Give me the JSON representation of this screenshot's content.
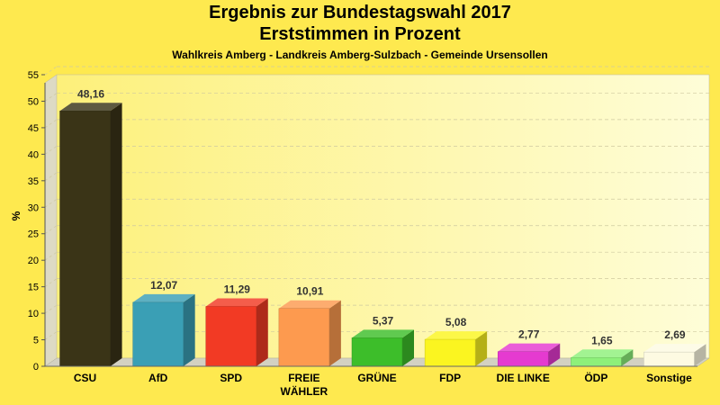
{
  "chart_data": {
    "type": "bar",
    "title": "Ergebnis zur Bundestagswahl 2017",
    "subtitle": "Erststimmen in Prozent",
    "caption": "Wahlkreis Amberg - Landkreis Amberg-Sulzbach - Gemeinde Ursensollen",
    "ylabel": "%",
    "xlabel": "",
    "ylim": [
      0,
      55
    ],
    "yticks": [
      "0",
      "5",
      "10",
      "15",
      "20",
      "25",
      "30",
      "35",
      "40",
      "45",
      "50",
      "55"
    ],
    "grid": true,
    "legend": "none",
    "categories": [
      {
        "line1": "CSU",
        "line2": ""
      },
      {
        "line1": "AfD",
        "line2": ""
      },
      {
        "line1": "SPD",
        "line2": ""
      },
      {
        "line1": "FREIE",
        "line2": "WÄHLER"
      },
      {
        "line1": "GRÜNE",
        "line2": ""
      },
      {
        "line1": "FDP",
        "line2": ""
      },
      {
        "line1": "DIE LINKE",
        "line2": ""
      },
      {
        "line1": "ÖDP",
        "line2": ""
      },
      {
        "line1": "Sonstige",
        "line2": ""
      }
    ],
    "values": [
      48.16,
      12.07,
      11.29,
      10.91,
      5.37,
      5.08,
      2.77,
      1.65,
      2.69
    ],
    "value_labels": [
      "48,16",
      "12,07",
      "11,29",
      "10,91",
      "5,37",
      "5,08",
      "2,77",
      "1,65",
      "2,69"
    ],
    "colors": [
      "#3a3417",
      "#3a9fb5",
      "#f23a24",
      "#fd9a4f",
      "#3dbe2a",
      "#fbf520",
      "#e53ad0",
      "#8ef07a",
      "#fdfae2"
    ]
  }
}
